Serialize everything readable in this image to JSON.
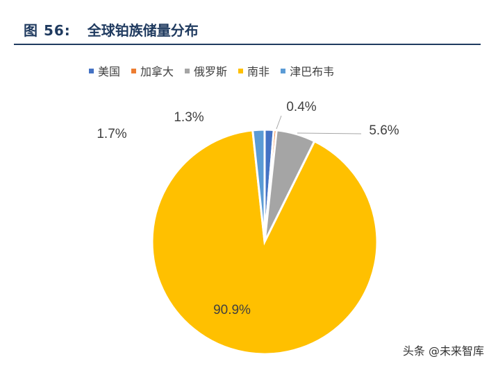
{
  "figure": {
    "number": "图 56:",
    "title": "全球铂族储量分布"
  },
  "watermark": "头条 @未来智库",
  "colors": {
    "title": "#1f3a5f",
    "us": "#4472c4",
    "canada": "#ed7d31",
    "russia": "#a5a5a5",
    "south_africa": "#ffc000",
    "zimbabwe": "#5b9bd5"
  },
  "chart_data": {
    "type": "pie",
    "title": "",
    "legend_position": "top",
    "slices": [
      {
        "name": "美国",
        "value": 1.3,
        "label": "1.3%",
        "color": "#4472c4"
      },
      {
        "name": "加拿大",
        "value": 0.4,
        "label": "0.4%",
        "color": "#ed7d31"
      },
      {
        "name": "俄罗斯",
        "value": 5.6,
        "label": "5.6%",
        "color": "#a5a5a5"
      },
      {
        "name": "南非",
        "value": 90.9,
        "label": "90.9%",
        "color": "#ffc000"
      },
      {
        "name": "津巴布韦",
        "value": 1.7,
        "label": "1.7%",
        "color": "#5b9bd5"
      }
    ]
  }
}
